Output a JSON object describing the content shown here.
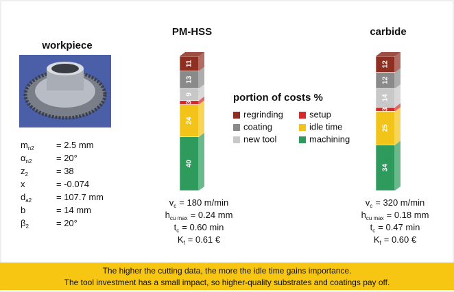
{
  "workpiece": {
    "title": "workpiece",
    "params": [
      {
        "symbol": "m",
        "sub": "n2",
        "text": "= 2.5 mm"
      },
      {
        "symbol": "α",
        "sub": "n2",
        "text": "= 20°"
      },
      {
        "symbol": "z",
        "sub": "2",
        "text": "= 38"
      },
      {
        "symbol": "x",
        "sub": "",
        "text": "= -0.074"
      },
      {
        "symbol": "d",
        "sub": "a2",
        "text": "= 107.7 mm"
      },
      {
        "symbol": "b",
        "sub": "",
        "text": "= 14 mm"
      },
      {
        "symbol": "β",
        "sub": "2",
        "text": "= 20°"
      }
    ]
  },
  "legend_title": "portion of costs %",
  "chart_data": [
    {
      "type": "bar",
      "stacked": true,
      "title": "PM-HSS",
      "series": [
        {
          "name": "machining",
          "color": "#2e9a5c",
          "values": [
            40
          ]
        },
        {
          "name": "idle time",
          "color": "#f2c318",
          "values": [
            24
          ]
        },
        {
          "name": "setup",
          "color": "#d42a2a",
          "values": [
            3
          ]
        },
        {
          "name": "new tool",
          "color": "#c8c8c8",
          "values": [
            9
          ]
        },
        {
          "name": "coating",
          "color": "#8a8a8a",
          "values": [
            13
          ]
        },
        {
          "name": "regrinding",
          "color": "#8e2f22",
          "values": [
            11
          ]
        }
      ],
      "notes": [
        {
          "symbol": "v",
          "sub": "c",
          "text": "= 180 m/min"
        },
        {
          "symbol": "h",
          "sub": "cu max",
          "text": "= 0.24 mm"
        },
        {
          "symbol": "t",
          "sub": "c",
          "text": "= 0.60 min"
        },
        {
          "symbol": "K",
          "sub": "f",
          "text": "= 0.61 €"
        }
      ]
    },
    {
      "type": "bar",
      "stacked": true,
      "title": "carbide",
      "series": [
        {
          "name": "machining",
          "color": "#2e9a5c",
          "values": [
            34
          ]
        },
        {
          "name": "idle time",
          "color": "#f2c318",
          "values": [
            25
          ]
        },
        {
          "name": "setup",
          "color": "#d42a2a",
          "values": [
            3
          ]
        },
        {
          "name": "new tool",
          "color": "#c8c8c8",
          "values": [
            14
          ]
        },
        {
          "name": "coating",
          "color": "#8a8a8a",
          "values": [
            12
          ]
        },
        {
          "name": "regrinding",
          "color": "#8e2f22",
          "values": [
            12
          ]
        }
      ],
      "notes": [
        {
          "symbol": "v",
          "sub": "c",
          "text": "= 320 m/min"
        },
        {
          "symbol": "h",
          "sub": "cu max",
          "text": "= 0.18 mm"
        },
        {
          "symbol": "t",
          "sub": "c",
          "text": "= 0.47 min"
        },
        {
          "symbol": "K",
          "sub": "f",
          "text": "= 0.60 €"
        }
      ]
    }
  ],
  "footer": [
    "The higher the cutting data, the more the idle time gains importance.",
    "The tool investment has a small impact, so higher-quality substrates and coatings pay off."
  ]
}
